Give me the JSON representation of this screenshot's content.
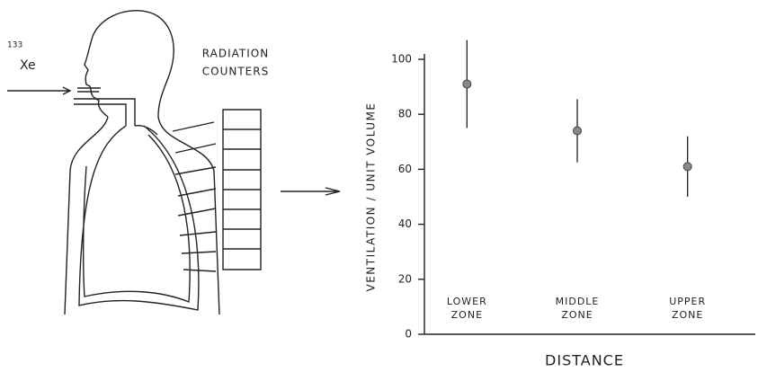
{
  "diagram": {
    "isotope_mass": "133",
    "isotope": "Xe",
    "counters_label": [
      "RADIATION",
      "COUNTERS"
    ]
  },
  "chart_data": {
    "type": "errorbar",
    "x_label": "DISTANCE",
    "y_label": "VENTILATION / UNIT VOLUME",
    "categories": [
      "LOWER ZONE",
      "MIDDLE ZONE",
      "UPPER ZONE"
    ],
    "values": [
      91,
      74,
      61
    ],
    "errors": [
      16,
      11.5,
      11
    ],
    "color": "#888888",
    "ylim": [
      0,
      100
    ],
    "yticks": [
      0,
      20,
      40,
      60,
      80,
      100
    ],
    "grid": false
  }
}
